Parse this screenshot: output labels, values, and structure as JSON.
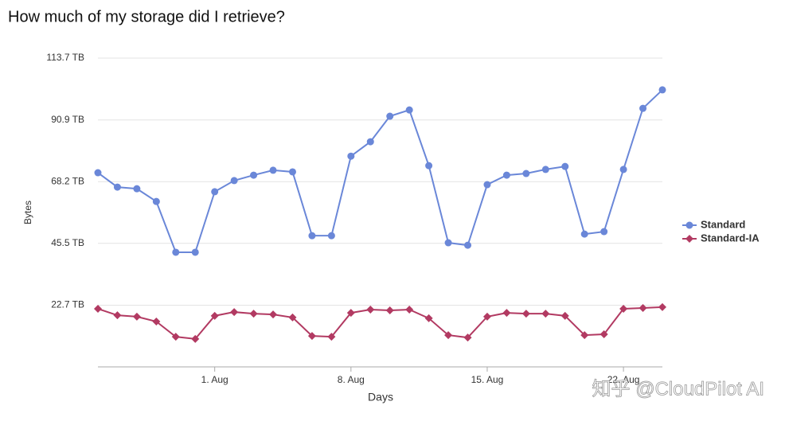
{
  "chart_data": {
    "type": "line",
    "title": "How much of my storage did I retrieve?",
    "y_label": "Bytes",
    "x_label": "Days",
    "watermark": "知乎 @CloudPilot AI",
    "categories": [
      null,
      null,
      null,
      null,
      null,
      null,
      "1. Aug",
      null,
      null,
      null,
      null,
      null,
      null,
      "8. Aug",
      null,
      null,
      null,
      null,
      null,
      null,
      "15. Aug",
      null,
      null,
      null,
      null,
      null,
      null,
      "22. Aug",
      null,
      null
    ],
    "series": [
      {
        "name": "Standard",
        "color": "#6a87d8",
        "marker": "circle",
        "values": [
          71.5,
          66.2,
          65.6,
          60.9,
          42.2,
          42.2,
          64.5,
          68.6,
          70.6,
          72.4,
          71.8,
          48.3,
          48.3,
          77.6,
          82.9,
          92.3,
          94.6,
          74.1,
          45.7,
          44.8,
          67.1,
          70.6,
          71.2,
          72.7,
          73.8,
          48.9,
          49.8,
          72.7,
          95.2,
          102.0
        ]
      },
      {
        "name": "Standard-IA",
        "color": "#b23a62",
        "marker": "diamond",
        "values": [
          21.4,
          19.0,
          18.5,
          16.7,
          11.1,
          10.3,
          18.8,
          20.2,
          19.6,
          19.3,
          18.2,
          11.4,
          11.1,
          19.9,
          21.1,
          20.8,
          21.1,
          17.9,
          11.7,
          10.8,
          18.5,
          19.9,
          19.6,
          19.6,
          18.8,
          11.7,
          12.0,
          21.4,
          21.7,
          22.0
        ]
      }
    ],
    "ylim": [
      0,
      113.7
    ],
    "yticks": [
      {
        "value": 22.7,
        "label": "22.7 TB"
      },
      {
        "value": 45.5,
        "label": "45.5 TB"
      },
      {
        "value": 68.2,
        "label": "68.2 TB"
      },
      {
        "value": 90.9,
        "label": "90.9 TB"
      },
      {
        "value": 113.7,
        "label": "113.7 TB"
      }
    ],
    "grid": true,
    "legend": "right"
  }
}
